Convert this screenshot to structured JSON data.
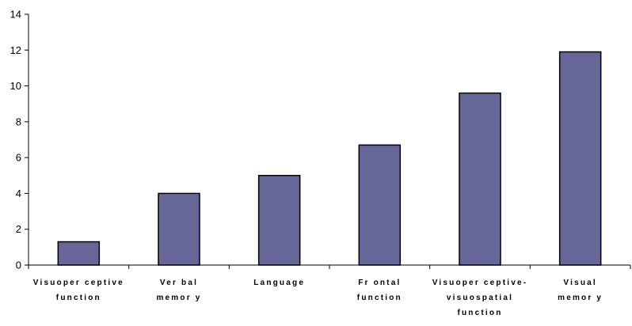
{
  "chart_data": {
    "type": "bar",
    "title": "",
    "xlabel": "",
    "ylabel": "",
    "categories": [
      [
        "Visuoper ceptive",
        "function"
      ],
      [
        "Ver bal",
        "memor y"
      ],
      [
        "Language"
      ],
      [
        "Fr ontal",
        "function"
      ],
      [
        "Visuoper ceptive-",
        "visuospatial",
        "function"
      ],
      [
        "Visual",
        "memor y"
      ]
    ],
    "values": [
      1.3,
      4.0,
      5.0,
      6.7,
      9.6,
      11.9
    ],
    "ylim": [
      0,
      14
    ],
    "yticks": [
      0,
      2,
      4,
      6,
      8,
      10,
      12,
      14
    ],
    "grid": false,
    "legend": "none",
    "bar_color": "#666699",
    "bar_edge_color": "#000000"
  }
}
